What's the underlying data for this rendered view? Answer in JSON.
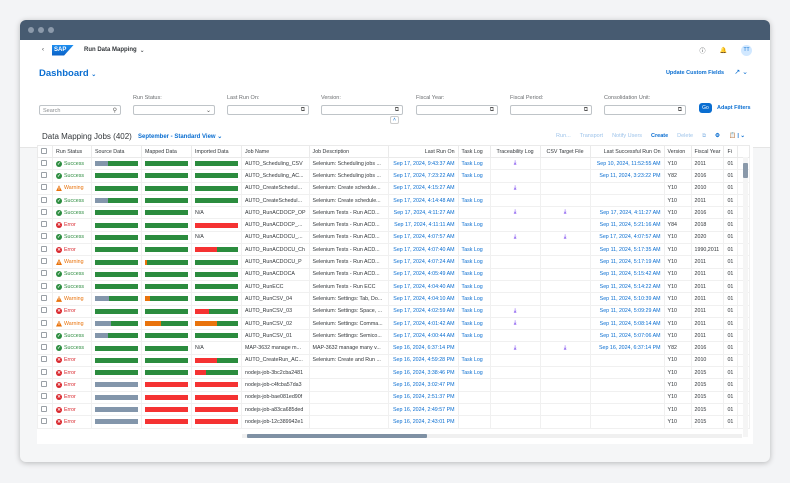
{
  "shell": {
    "title": "Run Data Mapping",
    "logo": "SAP",
    "avatar": "TT"
  },
  "header": {
    "title": "Dashboard",
    "update_custom_fields": "Update Custom Fields"
  },
  "filters": {
    "search_placeholder": "Search",
    "run_status": "Run Status:",
    "last_run_on": "Last Run On:",
    "version": "Version:",
    "fiscal_year": "Fiscal Year:",
    "fiscal_period": "Fiscal Period:",
    "consolidation_unit": "Consolidation Unit:",
    "go": "Go",
    "adapt": "Adapt Filters"
  },
  "table": {
    "title": "Data Mapping Jobs (402)",
    "view": "September - Standard View",
    "toolbar": [
      "Run...",
      "Transport",
      "Notify Users",
      "Create",
      "Delete"
    ],
    "columns": [
      "Run Status",
      "Source Data",
      "Mapped Data",
      "Imported Data",
      "Job Name",
      "Job Description",
      "Last Run On",
      "Task Log",
      "Traceability Log",
      "CSV Target File",
      "Last Successful Run On",
      "Version",
      "Fiscal Year",
      "Fi"
    ],
    "colors": {
      "green": "#2b8c3e",
      "gray": "#8396ab",
      "red": "#f53232",
      "orange": "#e9730c",
      "success": "#2b8c3e",
      "warning": "#e9730c",
      "error": "#d9262c"
    },
    "rows": [
      {
        "status": "Success",
        "src": [
          [
            "gray",
            30
          ],
          [
            "green",
            70
          ]
        ],
        "map": [
          [
            "green",
            100
          ]
        ],
        "imp": [
          [
            "green",
            100
          ]
        ],
        "job": "AUTO_Scheduling_CSV",
        "desc": "Selenium: Scheduling jobs ...",
        "last": "Sep 17, 2024, 9:43:37 AM",
        "task": "Task Log",
        "trace": true,
        "csv": false,
        "lastok": "Sep 10, 2024, 11:52:55 AM",
        "ver": "Y10",
        "fy": "2011",
        "fi": "01"
      },
      {
        "status": "Success",
        "src": [
          [
            "green",
            100
          ]
        ],
        "map": [
          [
            "green",
            100
          ]
        ],
        "imp": [
          [
            "green",
            100
          ]
        ],
        "job": "AUTO_Scheduling_AC...",
        "desc": "Selenium: Scheduling jobs ...",
        "last": "Sep 17, 2024, 7:23:22 AM",
        "task": "Task Log",
        "trace": false,
        "csv": false,
        "lastok": "Sep 11, 2024, 3:23:22 PM",
        "ver": "Y82",
        "fy": "2016",
        "fi": "01"
      },
      {
        "status": "Warning",
        "src": [
          [
            "green",
            100
          ]
        ],
        "map": [
          [
            "green",
            100
          ]
        ],
        "imp": [
          [
            "green",
            100
          ]
        ],
        "job": "AUTO_CreateSchedul...",
        "desc": "Selenium: Create schedule...",
        "last": "Sep 17, 2024, 4:15:27 AM",
        "task": "",
        "trace": true,
        "csv": false,
        "lastok": "",
        "ver": "Y10",
        "fy": "2010",
        "fi": "01"
      },
      {
        "status": "Success",
        "src": [
          [
            "gray",
            30
          ],
          [
            "green",
            70
          ]
        ],
        "map": [
          [
            "green",
            100
          ]
        ],
        "imp": [
          [
            "green",
            100
          ]
        ],
        "job": "AUTO_CreateSchedul...",
        "desc": "Selenium: Create schedule...",
        "last": "Sep 17, 2024, 4:14:48 AM",
        "task": "Task Log",
        "trace": false,
        "csv": false,
        "lastok": "",
        "ver": "Y10",
        "fy": "2011",
        "fi": "01"
      },
      {
        "status": "Success",
        "src": [
          [
            "green",
            100
          ]
        ],
        "map": [
          [
            "green",
            100
          ]
        ],
        "imp": "N/A",
        "job": "AUTO_RunACDOCP_OP",
        "desc": "Selenium Tests - Run ACD...",
        "last": "Sep 17, 2024, 4:11:27 AM",
        "task": "",
        "trace": true,
        "csv": true,
        "lastok": "Sep 17, 2024, 4:11:27 AM",
        "ver": "Y10",
        "fy": "2016",
        "fi": "01"
      },
      {
        "status": "Error",
        "src": [
          [
            "green",
            100
          ]
        ],
        "map": [
          [
            "green",
            100
          ]
        ],
        "imp": [
          [
            "red",
            100
          ]
        ],
        "job": "AUTO_RunACDOCP_...",
        "desc": "Selenium Tests - Run ACD...",
        "last": "Sep 17, 2024, 4:11:11 AM",
        "task": "Task Log",
        "trace": false,
        "csv": false,
        "lastok": "Sep 11, 2024, 5:21:16 AM",
        "ver": "Y84",
        "fy": "2018",
        "fi": "01"
      },
      {
        "status": "Success",
        "src": [
          [
            "green",
            100
          ]
        ],
        "map": [
          [
            "green",
            100
          ]
        ],
        "imp": "N/A",
        "job": "AUTO_RunACDOCU_...",
        "desc": "Selenium Tests - Run ACD...",
        "last": "Sep 17, 2024, 4:07:57 AM",
        "task": "",
        "trace": true,
        "csv": true,
        "lastok": "Sep 17, 2024, 4:07:57 AM",
        "ver": "Y10",
        "fy": "2020",
        "fi": "01"
      },
      {
        "status": "Error",
        "src": [
          [
            "green",
            100
          ]
        ],
        "map": [
          [
            "green",
            100
          ]
        ],
        "imp": [
          [
            "red",
            50
          ],
          [
            "green",
            50
          ]
        ],
        "job": "AUTO_RunACDOCU_Ch",
        "desc": "Selenium Tests - Run ACD...",
        "last": "Sep 17, 2024, 4:07:40 AM",
        "task": "Task Log",
        "trace": false,
        "csv": false,
        "lastok": "Sep 11, 2024, 5:17:35 AM",
        "ver": "Y10",
        "fy": "1990,2011",
        "fi": "01"
      },
      {
        "status": "Warning",
        "src": [
          [
            "green",
            100
          ]
        ],
        "map": [
          [
            "orange",
            4
          ],
          [
            "green",
            96
          ]
        ],
        "imp": [
          [
            "green",
            100
          ]
        ],
        "job": "AUTO_RunACDOCU_P",
        "desc": "Selenium Tests - Run ACD...",
        "last": "Sep 17, 2024, 4:07:24 AM",
        "task": "Task Log",
        "trace": false,
        "csv": false,
        "lastok": "Sep 11, 2024, 5:17:19 AM",
        "ver": "Y10",
        "fy": "2011",
        "fi": "01"
      },
      {
        "status": "Success",
        "src": [
          [
            "green",
            100
          ]
        ],
        "map": [
          [
            "green",
            100
          ]
        ],
        "imp": [
          [
            "green",
            100
          ]
        ],
        "job": "AUTO_RunACDOCA",
        "desc": "Selenium Tests - Run ACD...",
        "last": "Sep 17, 2024, 4:05:49 AM",
        "task": "Task Log",
        "trace": false,
        "csv": false,
        "lastok": "Sep 11, 2024, 5:15:42 AM",
        "ver": "Y10",
        "fy": "2011",
        "fi": "01"
      },
      {
        "status": "Success",
        "src": [
          [
            "green",
            100
          ]
        ],
        "map": [
          [
            "green",
            100
          ]
        ],
        "imp": [
          [
            "green",
            100
          ]
        ],
        "job": "AUTO_RunECC",
        "desc": "Selenium Tests - Run ECC",
        "last": "Sep 17, 2024, 4:04:40 AM",
        "task": "Task Log",
        "trace": false,
        "csv": false,
        "lastok": "Sep 11, 2024, 5:14:22 AM",
        "ver": "Y10",
        "fy": "2011",
        "fi": "01"
      },
      {
        "status": "Warning",
        "src": [
          [
            "gray",
            33
          ],
          [
            "green",
            67
          ]
        ],
        "map": [
          [
            "orange",
            12
          ],
          [
            "green",
            88
          ]
        ],
        "imp": [
          [
            "green",
            100
          ]
        ],
        "job": "AUTO_RunCSV_04",
        "desc": "Selenium: Settings: Tab, Do...",
        "last": "Sep 17, 2024, 4:04:10 AM",
        "task": "Task Log",
        "trace": false,
        "csv": false,
        "lastok": "Sep 11, 2024, 5:10:39 AM",
        "ver": "Y10",
        "fy": "2011",
        "fi": "01"
      },
      {
        "status": "Error",
        "src": [
          [
            "green",
            100
          ]
        ],
        "map": [
          [
            "green",
            100
          ]
        ],
        "imp": [
          [
            "red",
            33
          ],
          [
            "green",
            67
          ]
        ],
        "job": "AUTO_RunCSV_03",
        "desc": "Selenium: Settings: Space, ...",
        "last": "Sep 17, 2024, 4:02:59 AM",
        "task": "Task Log",
        "trace": true,
        "csv": false,
        "lastok": "Sep 11, 2024, 5:09:29 AM",
        "ver": "Y10",
        "fy": "2011",
        "fi": "01"
      },
      {
        "status": "Warning",
        "src": [
          [
            "gray",
            38
          ],
          [
            "green",
            62
          ]
        ],
        "map": [
          [
            "orange",
            38
          ],
          [
            "green",
            62
          ]
        ],
        "imp": [
          [
            "orange",
            50
          ],
          [
            "green",
            50
          ]
        ],
        "job": "AUTO_RunCSV_02",
        "desc": "Selenium: Settings: Comma...",
        "last": "Sep 17, 2024, 4:01:42 AM",
        "task": "Task Log",
        "trace": true,
        "csv": false,
        "lastok": "Sep 11, 2024, 5:08:14 AM",
        "ver": "Y10",
        "fy": "2011",
        "fi": "01"
      },
      {
        "status": "Success",
        "src": [
          [
            "gray",
            30
          ],
          [
            "green",
            70
          ]
        ],
        "map": [
          [
            "green",
            100
          ]
        ],
        "imp": [
          [
            "green",
            100
          ]
        ],
        "job": "AUTO_RunCSV_01",
        "desc": "Selenium: Settings: Semico...",
        "last": "Sep 17, 2024, 4:00:44 AM",
        "task": "Task Log",
        "trace": false,
        "csv": false,
        "lastok": "Sep 11, 2024, 5:07:06 AM",
        "ver": "Y10",
        "fy": "2011",
        "fi": "01"
      },
      {
        "status": "Success",
        "src": [
          [
            "green",
            100
          ]
        ],
        "map": [
          [
            "green",
            100
          ]
        ],
        "imp": "N/A",
        "job": "MAP-3632 manage m...",
        "desc": "MAP-3632 manage many v...",
        "last": "Sep 16, 2024, 6:37:14 PM",
        "task": "",
        "trace": true,
        "csv": true,
        "lastok": "Sep 16, 2024, 6:37:14 PM",
        "ver": "Y82",
        "fy": "2016",
        "fi": "01"
      },
      {
        "status": "Error",
        "src": [
          [
            "green",
            100
          ]
        ],
        "map": [
          [
            "green",
            100
          ]
        ],
        "imp": [
          [
            "red",
            50
          ],
          [
            "green",
            50
          ]
        ],
        "job": "AUTO_CreateRun_AC...",
        "desc": "Selenium: Create and Run ...",
        "last": "Sep 16, 2024, 4:59:28 PM",
        "task": "Task Log",
        "trace": false,
        "csv": false,
        "lastok": "",
        "ver": "Y10",
        "fy": "2010",
        "fi": "01"
      },
      {
        "status": "Error",
        "src": [
          [
            "green",
            100
          ]
        ],
        "map": [
          [
            "green",
            100
          ]
        ],
        "imp": [
          [
            "red",
            25
          ],
          [
            "green",
            75
          ]
        ],
        "job": "nodejs-job-3bc2cba2481",
        "desc": "",
        "last": "Sep 16, 2024, 3:38:46 PM",
        "task": "Task Log",
        "trace": false,
        "csv": false,
        "lastok": "",
        "ver": "Y10",
        "fy": "2015",
        "fi": "01"
      },
      {
        "status": "Error",
        "src": [
          [
            "gray",
            100
          ]
        ],
        "map": [
          [
            "red",
            100
          ]
        ],
        "imp": [
          [
            "red",
            100
          ]
        ],
        "job": "nodejs-job-c4fcba57da3",
        "desc": "",
        "last": "Sep 16, 2024, 3:02:47 PM",
        "task": "",
        "trace": false,
        "csv": false,
        "lastok": "",
        "ver": "Y10",
        "fy": "2015",
        "fi": "01"
      },
      {
        "status": "Error",
        "src": [
          [
            "gray",
            100
          ]
        ],
        "map": [
          [
            "red",
            100
          ]
        ],
        "imp": [
          [
            "red",
            100
          ]
        ],
        "job": "nodejs-job-bae081ed90f",
        "desc": "",
        "last": "Sep 16, 2024, 2:51:37 PM",
        "task": "",
        "trace": false,
        "csv": false,
        "lastok": "",
        "ver": "Y10",
        "fy": "2015",
        "fi": "01"
      },
      {
        "status": "Error",
        "src": [
          [
            "gray",
            100
          ]
        ],
        "map": [
          [
            "red",
            100
          ]
        ],
        "imp": [
          [
            "red",
            100
          ]
        ],
        "job": "nodejs-job-a83ca685ded",
        "desc": "",
        "last": "Sep 16, 2024, 2:49:57 PM",
        "task": "",
        "trace": false,
        "csv": false,
        "lastok": "",
        "ver": "Y10",
        "fy": "2015",
        "fi": "01"
      },
      {
        "status": "Error",
        "src": [
          [
            "gray",
            100
          ]
        ],
        "map": [
          [
            "red",
            100
          ]
        ],
        "imp": [
          [
            "red",
            100
          ]
        ],
        "job": "nodejs-job-12c389942e1",
        "desc": "",
        "last": "Sep 16, 2024, 2:43:01 PM",
        "task": "",
        "trace": false,
        "csv": false,
        "lastok": "",
        "ver": "Y10",
        "fy": "2015",
        "fi": "01"
      }
    ]
  }
}
